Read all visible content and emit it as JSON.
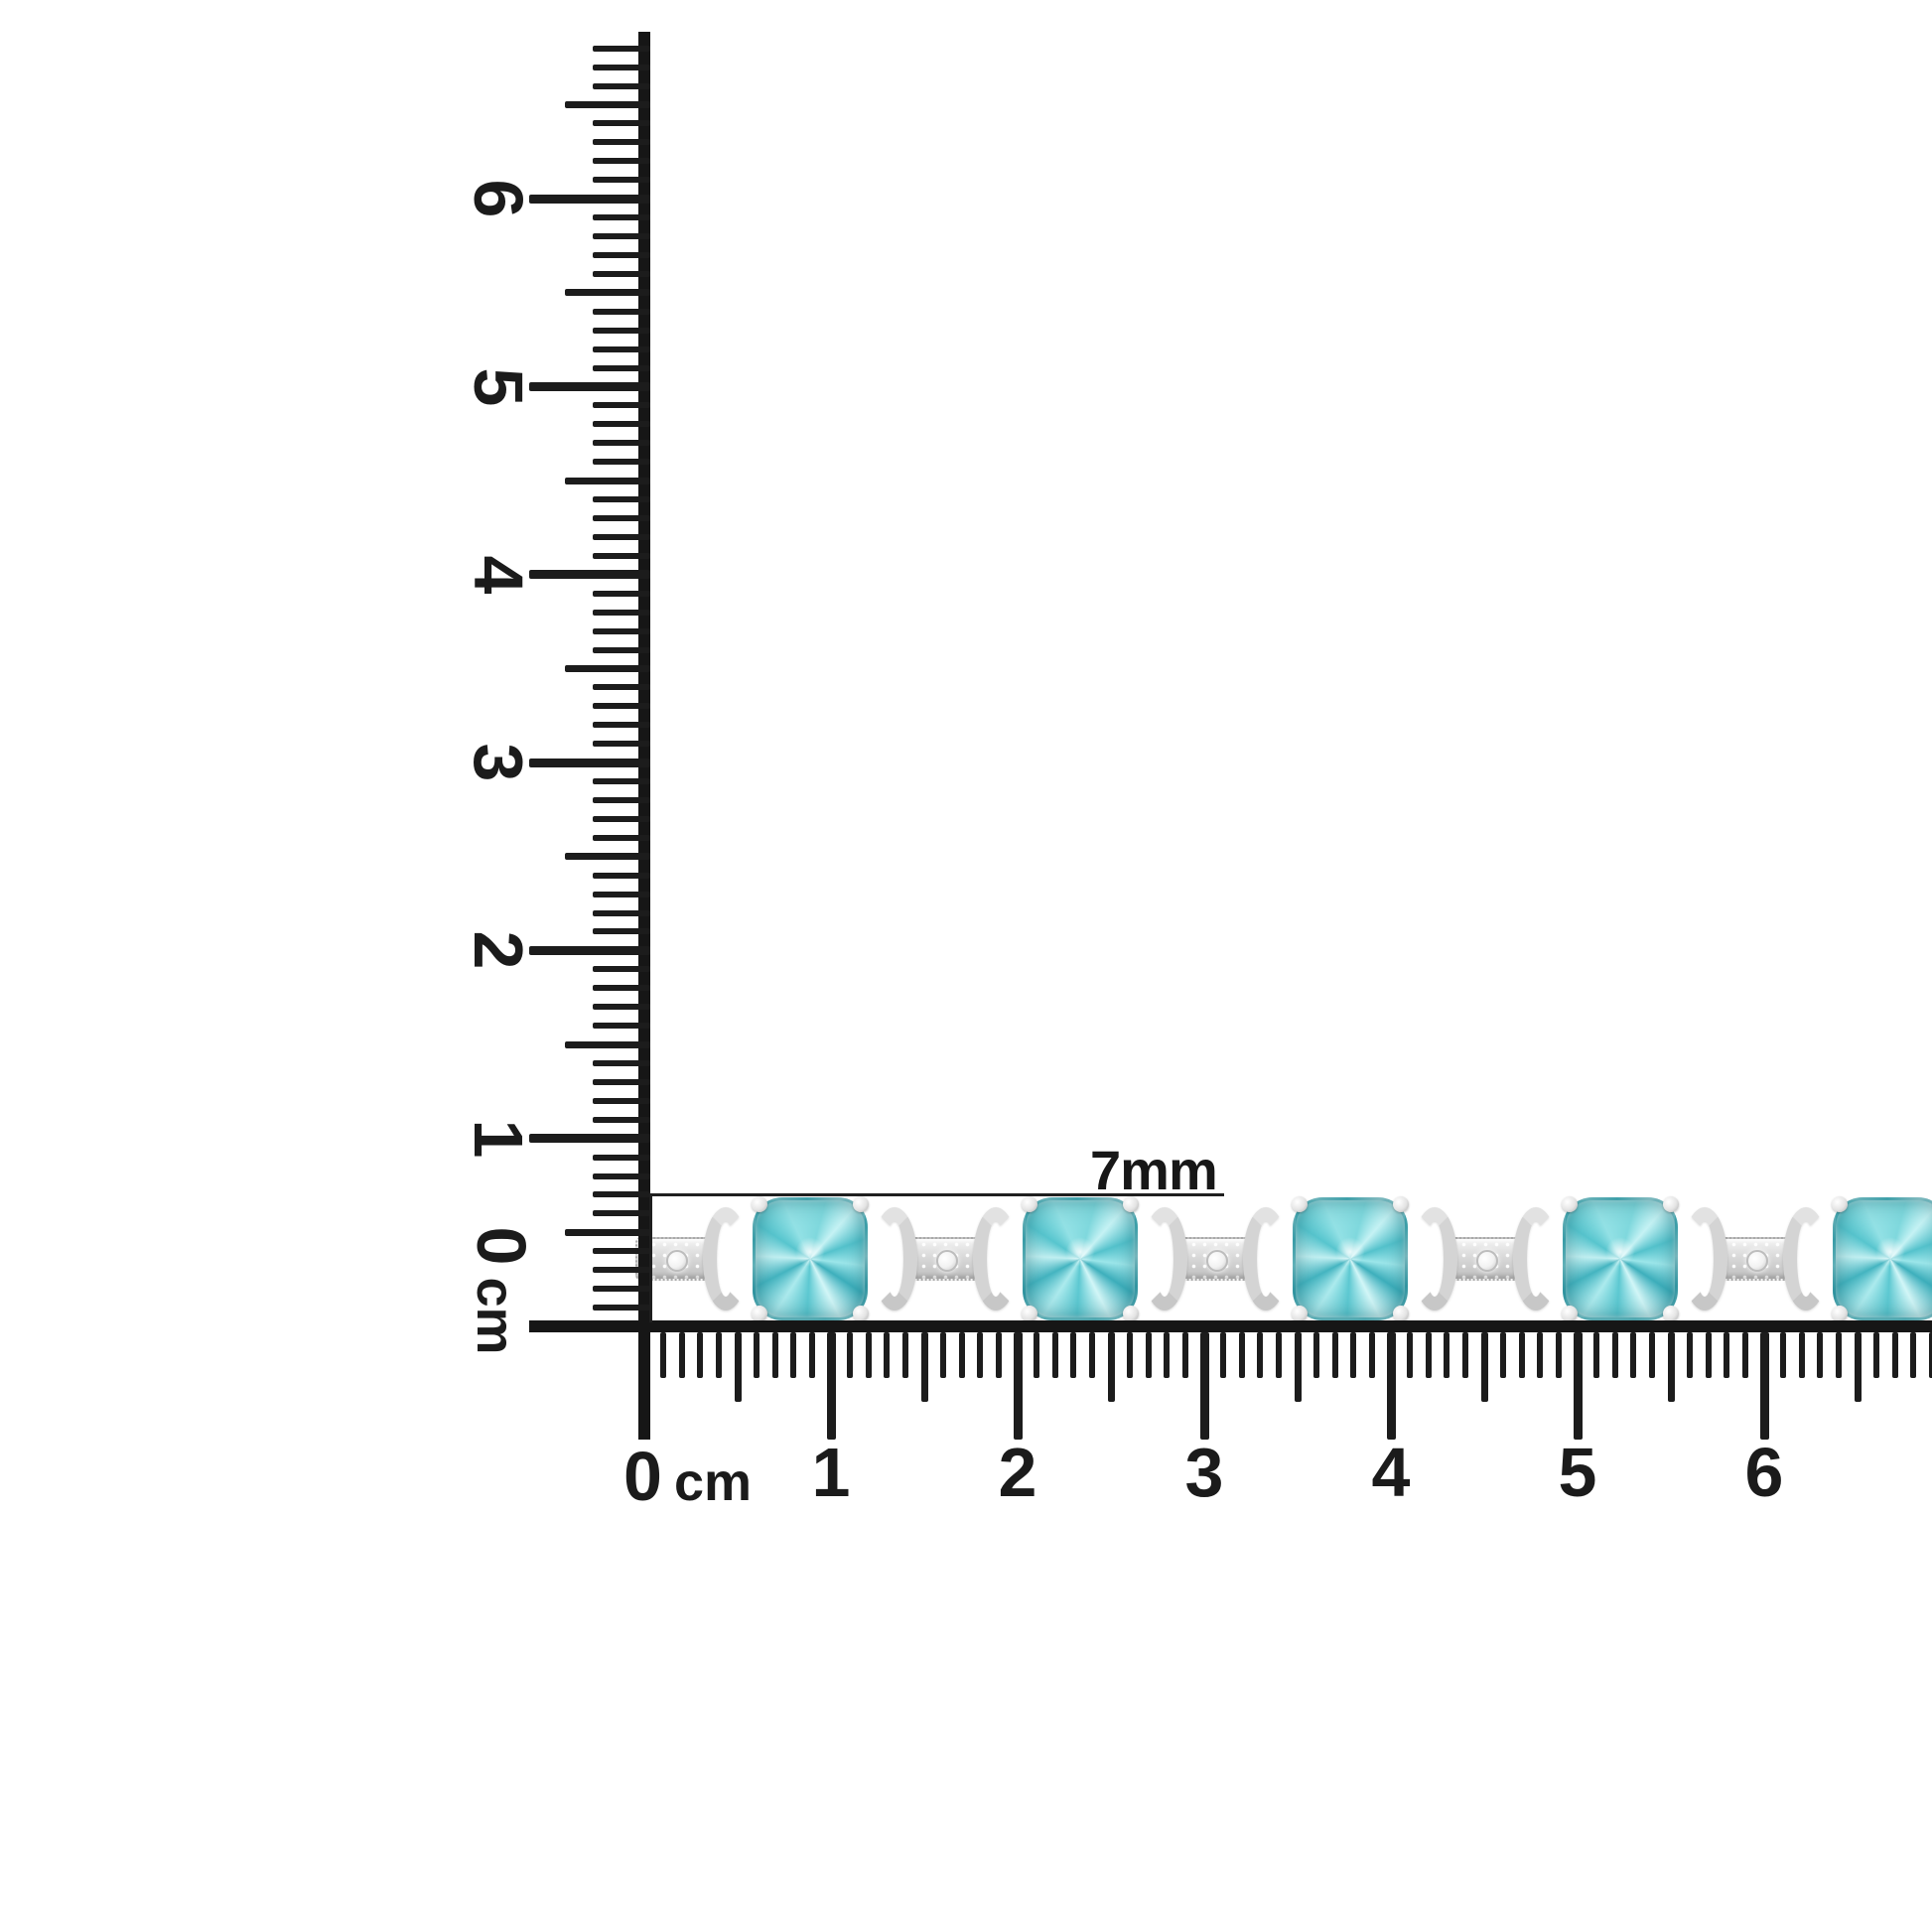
{
  "annotation": {
    "text": "7mm"
  },
  "vertical_ruler": {
    "unit": "cm",
    "zero_label": "0",
    "cm_labels": [
      "1",
      "2",
      "3",
      "4",
      "5",
      "6"
    ],
    "mm_tick_count": 68
  },
  "horizontal_ruler": {
    "unit": "cm",
    "zero_label": "0",
    "cm_labels": [
      "1",
      "2",
      "3",
      "4",
      "5",
      "6"
    ],
    "mm_tick_count": 69
  },
  "bracelet": {
    "gem_count": 5,
    "colors": {
      "gem_teal": "#5fc8d1",
      "gem_light": "#c2f0f2",
      "gem_dark": "#2e9aa8",
      "metal_silver": "#d7d7d7",
      "diamond_white": "#ffffff",
      "ink_black": "#1c1c1c"
    }
  }
}
